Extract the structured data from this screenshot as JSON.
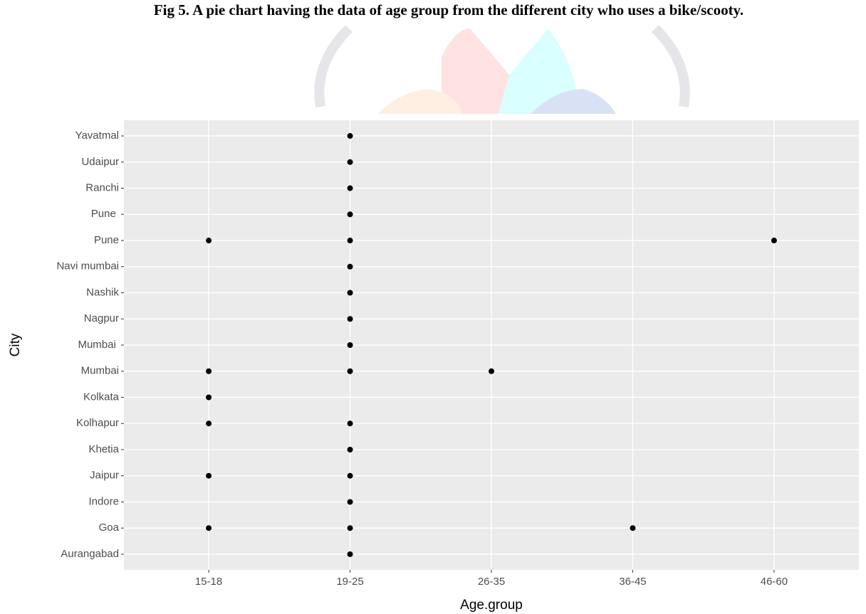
{
  "chart_data": {
    "type": "scatter",
    "title": "Fig 5. A pie chart having the data of age group from the different city who uses a bike/scooty.",
    "x_label": "Age.group",
    "y_label": "City",
    "x_categories": [
      "15-18",
      "19-25",
      "26-35",
      "36-45",
      "46-60"
    ],
    "y_categories": [
      "Aurangabad",
      "Goa",
      "Indore",
      "Jaipur",
      "Khetia",
      "Kolhapur",
      "Kolkata",
      "Mumbai",
      "Mumbai ",
      "Nagpur",
      "Nashik",
      "Navi mumbai",
      "Pune",
      "Pune ",
      "Ranchi",
      "Udaipur",
      "Yavatmal"
    ],
    "color": "#000000",
    "grid": true,
    "points": [
      {
        "x": "19-25",
        "y": "Aurangabad"
      },
      {
        "x": "15-18",
        "y": "Goa"
      },
      {
        "x": "19-25",
        "y": "Goa"
      },
      {
        "x": "36-45",
        "y": "Goa"
      },
      {
        "x": "19-25",
        "y": "Indore"
      },
      {
        "x": "15-18",
        "y": "Jaipur"
      },
      {
        "x": "19-25",
        "y": "Jaipur"
      },
      {
        "x": "19-25",
        "y": "Khetia"
      },
      {
        "x": "15-18",
        "y": "Kolhapur"
      },
      {
        "x": "19-25",
        "y": "Kolhapur"
      },
      {
        "x": "15-18",
        "y": "Kolkata"
      },
      {
        "x": "15-18",
        "y": "Mumbai"
      },
      {
        "x": "19-25",
        "y": "Mumbai"
      },
      {
        "x": "26-35",
        "y": "Mumbai"
      },
      {
        "x": "19-25",
        "y": "Mumbai "
      },
      {
        "x": "19-25",
        "y": "Nagpur"
      },
      {
        "x": "19-25",
        "y": "Nashik"
      },
      {
        "x": "19-25",
        "y": "Navi mumbai"
      },
      {
        "x": "15-18",
        "y": "Pune"
      },
      {
        "x": "19-25",
        "y": "Pune"
      },
      {
        "x": "46-60",
        "y": "Pune"
      },
      {
        "x": "19-25",
        "y": "Pune "
      },
      {
        "x": "19-25",
        "y": "Ranchi"
      },
      {
        "x": "19-25",
        "y": "Udaipur"
      },
      {
        "x": "19-25",
        "y": "Yavatmal"
      }
    ]
  }
}
